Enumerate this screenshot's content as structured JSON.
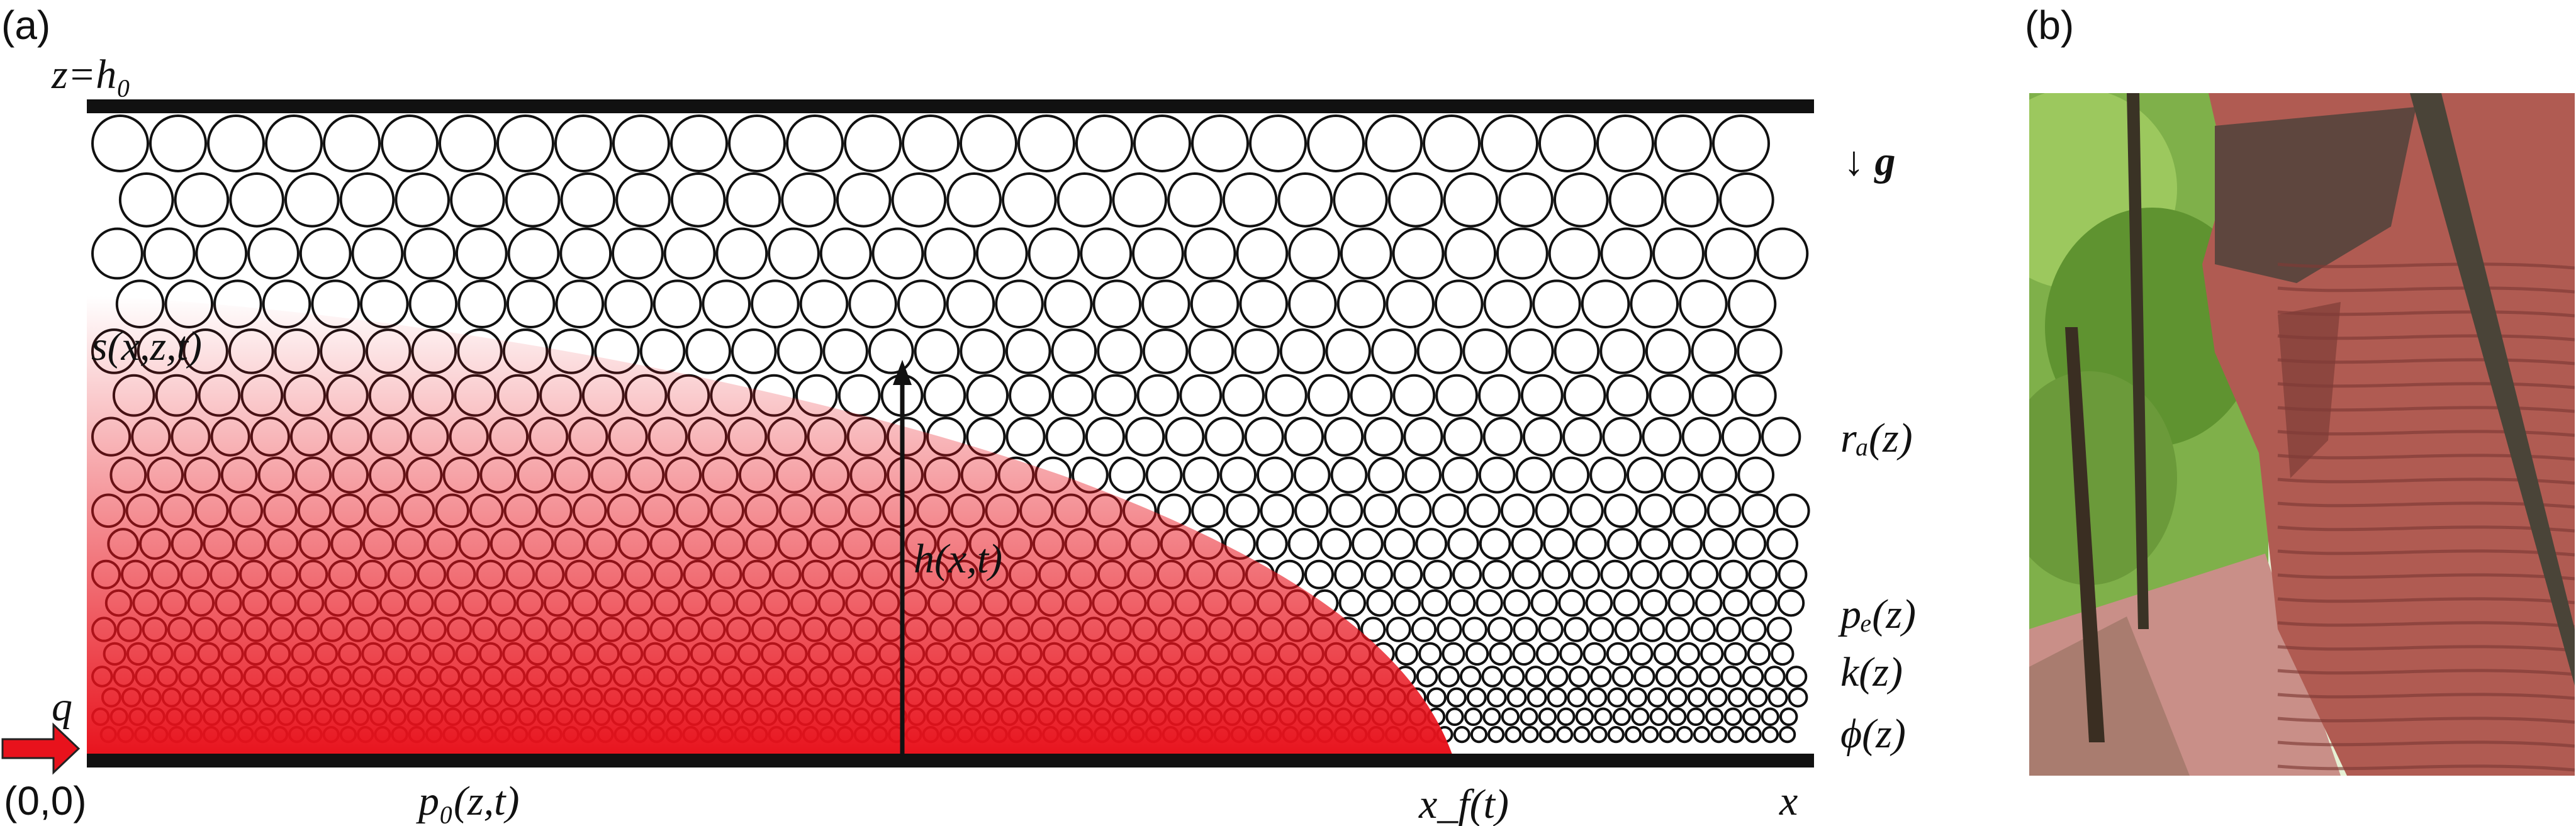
{
  "panel_a": {
    "tag": "(a)",
    "labels": {
      "top_boundary": "z=h₀",
      "gravity": "↓ g",
      "saturation": "s(x,z,t)",
      "capillary_radius": "rₐ(z)",
      "height": "h(x,t)",
      "entry_pressure": "pₑ(z)",
      "permeability": "k(z)",
      "porosity": "ϕ(z)",
      "inflow": "q",
      "origin": "(0,0)",
      "pressure": "p₀(z,t)",
      "front": "x_f(t)",
      "x_axis": "x"
    },
    "colors": {
      "fluid": "#e8121c",
      "grain_stroke": "#111111",
      "wall": "#111111"
    }
  },
  "panel_b": {
    "tag": "(b)",
    "photo_colors": {
      "rock": "#b05b52",
      "foliage": "#6fa33a",
      "sky": "#e6f0d4",
      "path": "#c98f88"
    }
  }
}
